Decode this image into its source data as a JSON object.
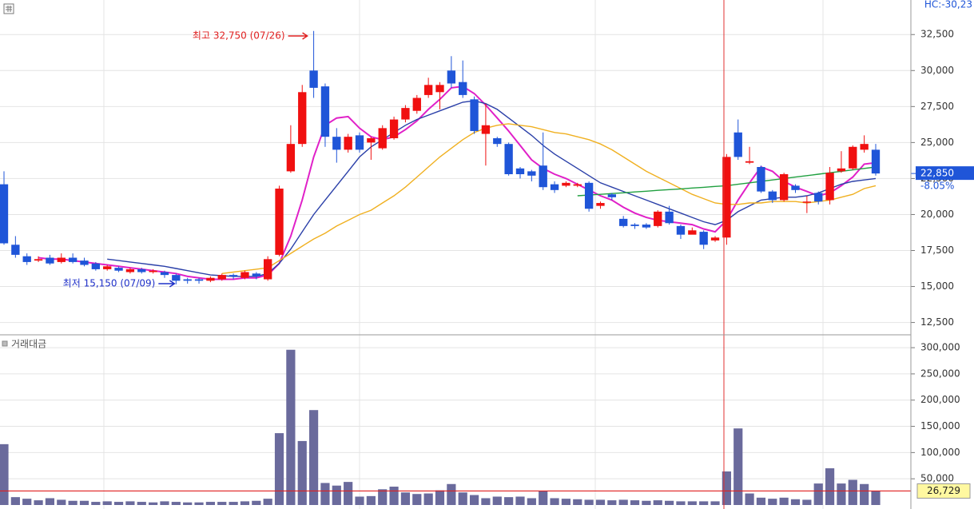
{
  "chart_data": {
    "type": "candlestick",
    "open": [
      22100,
      17900,
      17100,
      16800,
      17000,
      16700,
      17000,
      16800,
      16600,
      16200,
      16300,
      16000,
      16200,
      16000,
      16000,
      15800,
      15500,
      15500,
      15400,
      15500,
      15800,
      15600,
      15900,
      15500,
      17200,
      23000,
      24900,
      30000,
      28900,
      25400,
      24500,
      25500,
      25000,
      24600,
      25300,
      26600,
      27200,
      28300,
      28500,
      30000,
      29200,
      28000,
      25600,
      25300,
      24900,
      23200,
      23000,
      23400,
      22100,
      22000,
      22000,
      22200,
      20600,
      21400,
      19700,
      19300,
      19300,
      19200,
      20200,
      19200,
      18600,
      18800,
      18200,
      18400,
      25700,
      23600,
      23300,
      21600,
      21000,
      22000,
      20900,
      21500,
      21000,
      23000,
      23200,
      24500,
      24500
    ],
    "high": [
      23000,
      18500,
      17300,
      17100,
      17200,
      17300,
      17300,
      17000,
      16700,
      16500,
      16400,
      16300,
      16300,
      16200,
      16100,
      15900,
      15600,
      15600,
      15700,
      15900,
      15900,
      16100,
      16000,
      17100,
      22000,
      26200,
      29000,
      32750,
      29100,
      26000,
      25600,
      25700,
      25400,
      26200,
      26800,
      27600,
      28300,
      29500,
      29200,
      31000,
      30700,
      28200,
      27700,
      25400,
      25000,
      23300,
      23100,
      25700,
      22300,
      22300,
      22200,
      22300,
      20900,
      21500,
      19900,
      19400,
      19400,
      20300,
      20600,
      19300,
      19100,
      18900,
      18500,
      24200,
      26600,
      24700,
      23400,
      21700,
      22900,
      22100,
      21300,
      21600,
      23300,
      24400,
      24800,
      25500,
      24900
    ],
    "low": [
      17900,
      17000,
      16500,
      16700,
      16500,
      16600,
      16600,
      16400,
      16100,
      16100,
      16000,
      15900,
      15900,
      15900,
      15600,
      15150,
      15200,
      15200,
      15300,
      15400,
      15500,
      15500,
      15500,
      15400,
      17100,
      22900,
      24700,
      28100,
      24700,
      23600,
      24300,
      24300,
      23800,
      24500,
      25200,
      26400,
      27000,
      28100,
      27300,
      28800,
      28100,
      25600,
      23400,
      24700,
      22700,
      22500,
      22300,
      21700,
      21500,
      21900,
      21900,
      20200,
      20400,
      21000,
      19100,
      19000,
      19000,
      19100,
      19300,
      18300,
      18700,
      17600,
      18100,
      17900,
      23800,
      23500,
      21500,
      20800,
      20900,
      21500,
      20100,
      20700,
      20700,
      22900,
      23100,
      24300,
      22700
    ],
    "close": [
      18000,
      17200,
      16700,
      16900,
      16600,
      17000,
      16700,
      16500,
      16200,
      16400,
      16100,
      16200,
      16000,
      16100,
      15800,
      15400,
      15400,
      15400,
      15600,
      15800,
      15700,
      16000,
      15700,
      16900,
      21800,
      24900,
      28500,
      28800,
      25400,
      24500,
      25400,
      24500,
      25300,
      26000,
      26600,
      27400,
      28100,
      29000,
      29000,
      29100,
      28300,
      25800,
      26200,
      24900,
      22800,
      22800,
      22700,
      21900,
      21700,
      22200,
      22100,
      20400,
      20800,
      21200,
      19200,
      19200,
      19100,
      20200,
      19400,
      18600,
      18900,
      17900,
      18400,
      24000,
      24000,
      23700,
      21600,
      21000,
      22800,
      21700,
      20900,
      20900,
      22900,
      23200,
      24700,
      24900,
      22850
    ],
    "up_color": "#f01010",
    "down_color": "#1f55d8",
    "moving_averages": [
      {
        "color": "#e020c8",
        "values": [
          null,
          null,
          null,
          17000,
          16900,
          16900,
          16800,
          16700,
          16600,
          16500,
          16400,
          16300,
          16200,
          16100,
          16000,
          15900,
          15700,
          15600,
          15500,
          15500,
          15500,
          15600,
          15600,
          15800,
          16600,
          18500,
          21000,
          24000,
          26200,
          26700,
          26800,
          26000,
          25400,
          25200,
          25400,
          25900,
          26500,
          27300,
          28000,
          28800,
          28900,
          28400,
          27600,
          26700,
          25800,
          24800,
          23800,
          23200,
          22800,
          22500,
          22100,
          21700,
          21300,
          21000,
          20500,
          20100,
          19800,
          19600,
          19500,
          19400,
          19300,
          19000,
          18800,
          19600,
          21000,
          22200,
          23300,
          23000,
          22300,
          21900,
          21600,
          21300,
          21500,
          22000,
          22600,
          23500,
          23600
        ]
      },
      {
        "color": "#2a3fa8",
        "values": [
          null,
          null,
          null,
          null,
          null,
          null,
          null,
          null,
          null,
          16900,
          16800,
          16700,
          16600,
          16500,
          16400,
          16250,
          16100,
          15950,
          15800,
          15750,
          15700,
          15700,
          15700,
          15900,
          16600,
          17600,
          18800,
          20000,
          21000,
          22000,
          23000,
          24000,
          24700,
          25200,
          25700,
          26200,
          26600,
          26900,
          27200,
          27500,
          27800,
          27900,
          27700,
          27300,
          26700,
          26100,
          25500,
          24800,
          24200,
          23700,
          23200,
          22700,
          22200,
          21900,
          21600,
          21300,
          21000,
          20700,
          20400,
          20100,
          19800,
          19500,
          19300,
          19600,
          20200,
          20600,
          21000,
          21100,
          21200,
          21200,
          21300,
          21500,
          21800,
          22100,
          22300,
          22400,
          22500
        ]
      },
      {
        "color": "#f0b020",
        "values": [
          null,
          null,
          null,
          null,
          null,
          null,
          null,
          null,
          null,
          null,
          null,
          null,
          null,
          null,
          null,
          null,
          null,
          null,
          null,
          15900,
          16000,
          16100,
          16200,
          16300,
          16800,
          17300,
          17800,
          18300,
          18700,
          19200,
          19600,
          20000,
          20300,
          20800,
          21300,
          21900,
          22600,
          23300,
          24000,
          24600,
          25200,
          25700,
          26000,
          26200,
          26300,
          26200,
          26100,
          25900,
          25700,
          25600,
          25400,
          25200,
          24900,
          24500,
          24000,
          23500,
          23000,
          22600,
          22200,
          21800,
          21400,
          21100,
          20800,
          20700,
          20700,
          20800,
          20800,
          20900,
          20900,
          20900,
          20800,
          20900,
          21000,
          21200,
          21400,
          21800,
          22000
        ]
      },
      {
        "color": "#20a040",
        "values": [
          null,
          null,
          null,
          null,
          null,
          null,
          null,
          null,
          null,
          null,
          null,
          null,
          null,
          null,
          null,
          null,
          null,
          null,
          null,
          null,
          null,
          null,
          null,
          null,
          null,
          null,
          null,
          null,
          null,
          null,
          null,
          null,
          null,
          null,
          null,
          null,
          null,
          null,
          null,
          null,
          null,
          null,
          null,
          null,
          null,
          null,
          null,
          null,
          null,
          null,
          21300,
          21350,
          21400,
          21460,
          21510,
          21570,
          21620,
          21680,
          21730,
          21780,
          21840,
          21890,
          21950,
          22000,
          22100,
          22200,
          22300,
          22400,
          22500,
          22600,
          22700,
          22800,
          22900,
          23000,
          23100,
          23200,
          23300
        ]
      }
    ],
    "ylim": [
      11700,
      34900
    ],
    "yticks": [
      {
        "value": 12500,
        "label": "12,500"
      },
      {
        "value": 15000,
        "label": "15,000"
      },
      {
        "value": 17500,
        "label": "17,500"
      },
      {
        "value": 20000,
        "label": "20,000"
      },
      {
        "value": 22500,
        "label": "22,500"
      },
      {
        "value": 25000,
        "label": "25,000"
      },
      {
        "value": 27500,
        "label": "27,500"
      },
      {
        "value": 30000,
        "label": "30,000"
      },
      {
        "value": 32500,
        "label": "32,500"
      }
    ],
    "grid": true,
    "high_annotation": "최고 32,750 (07/26)",
    "low_annotation": "최저 15,150 (07/09)",
    "last_price": {
      "value": 22850,
      "label": "22,850"
    },
    "change_label": "-8.05%",
    "corner_label": "HC:-30,23",
    "volume_title": "거래대금",
    "volume_color": "#6a6a9c",
    "volume": [
      116000,
      15000,
      12000,
      9000,
      13000,
      10000,
      8000,
      8000,
      6000,
      7000,
      6000,
      7000,
      6000,
      5000,
      7000,
      6000,
      5000,
      5000,
      6000,
      6000,
      6000,
      7000,
      8000,
      12000,
      137000,
      296000,
      122000,
      181000,
      42000,
      37000,
      44000,
      16000,
      17000,
      30000,
      35000,
      24000,
      21000,
      22000,
      28000,
      40000,
      24000,
      19000,
      13000,
      16000,
      15000,
      16000,
      13000,
      26000,
      13000,
      12000,
      11000,
      10000,
      10000,
      9000,
      10000,
      9000,
      8000,
      9000,
      8000,
      7000,
      7000,
      7000,
      7000,
      64000,
      146000,
      22000,
      14000,
      12000,
      14000,
      11000,
      10000,
      41000,
      70000,
      41000,
      48000,
      40000,
      26729
    ],
    "last_volume": {
      "value": 26729,
      "label": "26,729"
    },
    "y2lim": [
      0,
      323000
    ],
    "y2ticks": [
      {
        "value": 50000,
        "label": "50,000"
      },
      {
        "value": 100000,
        "label": "100,000"
      },
      {
        "value": 150000,
        "label": "150,000"
      },
      {
        "value": 200000,
        "label": "200,000"
      },
      {
        "value": 250000,
        "label": "250,000"
      },
      {
        "value": 300000,
        "label": "300,000"
      }
    ]
  }
}
